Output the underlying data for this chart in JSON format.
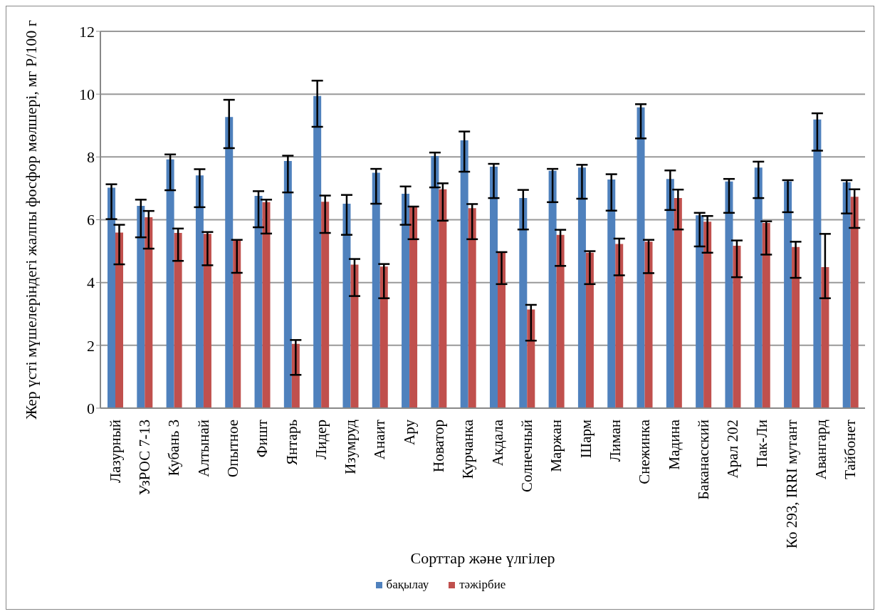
{
  "chart_data": {
    "type": "bar",
    "xlabel": "Сорттар және үлгілер",
    "ylabel": "Жер үсті мүшелеріндегі жалпы фосфор мөлшері, мг Р/100 г",
    "categories": [
      "Лазурный",
      "УзРОС 7-13",
      "Кубань 3",
      "Алтынай",
      "Опытное",
      "Фишт",
      "Янтарь",
      "Лидер",
      "Изумруд",
      "Анаит",
      "Ару",
      "Новатор",
      "Курчанка",
      "Акдала",
      "Солнечный",
      "Маржан",
      "Шарм",
      "Лиман",
      "Снежинка",
      "Мадина",
      "Баканасский",
      "Арал 202",
      "Пак-Ли",
      "Ко 293, IRRI мутант",
      "Авангард",
      "Тайбонет"
    ],
    "series": [
      {
        "name": "бақылау",
        "color": "#4f81bd",
        "values": [
          7.02,
          6.44,
          7.92,
          7.41,
          9.27,
          6.76,
          7.87,
          9.94,
          6.51,
          7.5,
          6.83,
          8.03,
          8.53,
          7.69,
          6.69,
          7.56,
          7.66,
          7.28,
          9.58,
          7.3,
          6.14,
          7.22,
          7.66,
          7.22,
          9.19,
          7.19
        ],
        "errors": [
          [
            6.02,
            7.13
          ],
          [
            5.44,
            6.64
          ],
          [
            6.94,
            8.08
          ],
          [
            6.4,
            7.61
          ],
          [
            8.28,
            9.82
          ],
          [
            5.76,
            6.91
          ],
          [
            6.87,
            8.04
          ],
          [
            8.96,
            10.43
          ],
          [
            5.52,
            6.79
          ],
          [
            6.51,
            7.62
          ],
          [
            5.84,
            7.06
          ],
          [
            7.03,
            8.14
          ],
          [
            7.53,
            8.81
          ],
          [
            6.69,
            7.78
          ],
          [
            5.69,
            6.95
          ],
          [
            6.56,
            7.62
          ],
          [
            6.67,
            7.75
          ],
          [
            6.29,
            7.45
          ],
          [
            8.59,
            9.68
          ],
          [
            6.31,
            7.57
          ],
          [
            5.15,
            6.22
          ],
          [
            6.22,
            7.3
          ],
          [
            6.69,
            7.85
          ],
          [
            6.24,
            7.26
          ],
          [
            8.2,
            9.39
          ],
          [
            6.2,
            7.26
          ]
        ]
      },
      {
        "name": "тәжірбие",
        "color": "#c0504d",
        "values": [
          5.59,
          6.08,
          5.58,
          5.55,
          5.34,
          6.56,
          2.05,
          6.57,
          4.57,
          4.51,
          6.4,
          6.97,
          6.37,
          4.96,
          3.14,
          5.52,
          4.95,
          5.23,
          5.3,
          6.69,
          5.94,
          5.17,
          5.9,
          5.13,
          4.49,
          6.73
        ],
        "errors": [
          [
            4.58,
            5.84
          ],
          [
            5.08,
            6.28
          ],
          [
            4.69,
            5.72
          ],
          [
            4.55,
            5.61
          ],
          [
            4.31,
            5.36
          ],
          [
            5.56,
            6.64
          ],
          [
            1.06,
            2.17
          ],
          [
            5.58,
            6.77
          ],
          [
            3.57,
            4.75
          ],
          [
            3.5,
            4.59
          ],
          [
            5.38,
            6.42
          ],
          [
            5.97,
            7.16
          ],
          [
            5.38,
            6.5
          ],
          [
            3.95,
            4.97
          ],
          [
            2.15,
            3.29
          ],
          [
            4.53,
            5.68
          ],
          [
            3.95,
            5.0
          ],
          [
            4.23,
            5.4
          ],
          [
            4.3,
            5.36
          ],
          [
            5.69,
            6.96
          ],
          [
            4.95,
            6.12
          ],
          [
            4.17,
            5.34
          ],
          [
            4.89,
            5.95
          ],
          [
            4.15,
            5.3
          ],
          [
            3.5,
            5.55
          ],
          [
            5.74,
            6.97
          ]
        ]
      }
    ],
    "ylim": [
      0,
      12
    ],
    "yticks": [
      0,
      2,
      4,
      6,
      8,
      10,
      12
    ],
    "grid": "y",
    "legend": "bottom"
  }
}
